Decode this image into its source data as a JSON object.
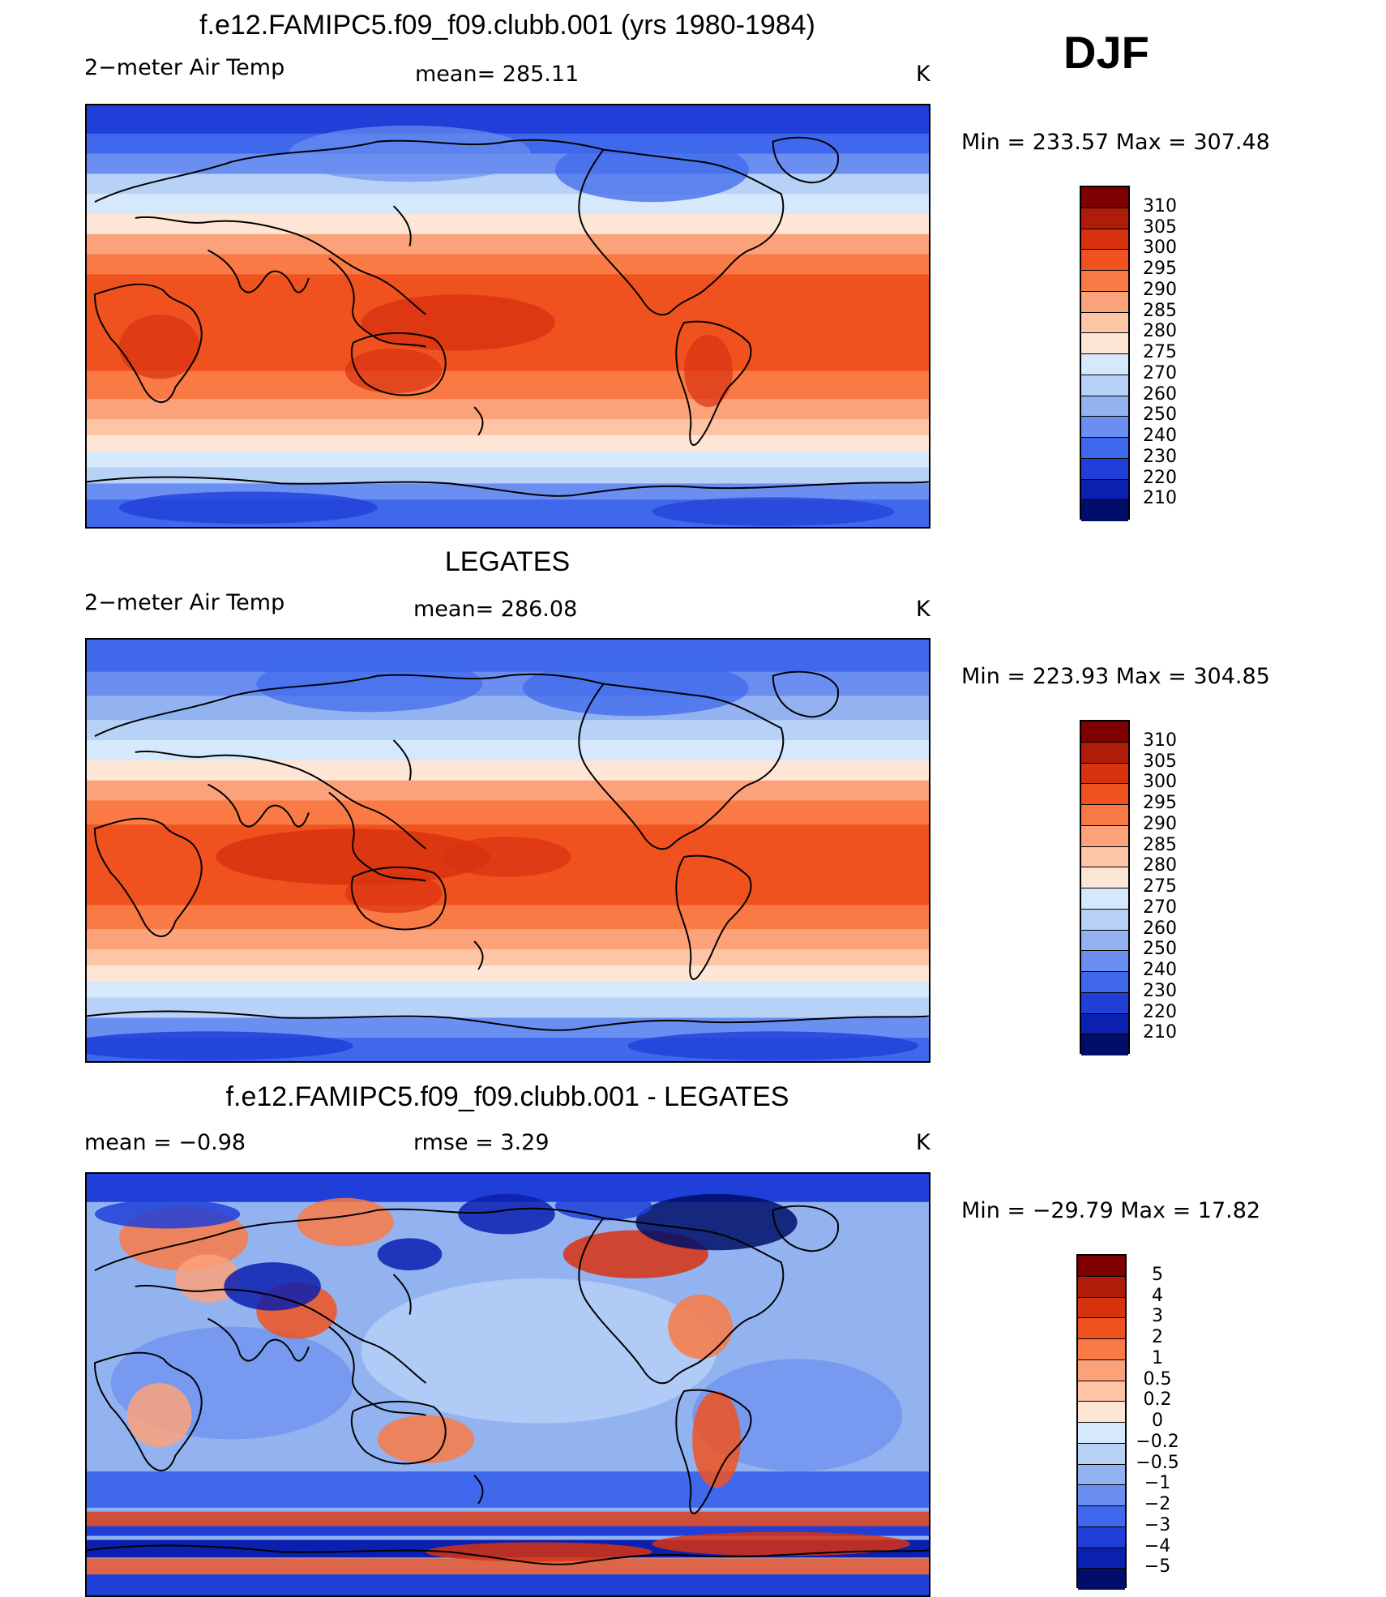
{
  "season": "DJF",
  "panels": [
    {
      "title": "f.e12.FAMIPC5.f09_f09.clubb.001 (yrs 1980-1984)",
      "left_label": "2−meter Air Temp",
      "center_label": "mean= 285.11",
      "units": "K",
      "minmax": "Min  =  233.57  Max  =  307.48",
      "colorbar": {
        "labels": [
          "310",
          "305",
          "300",
          "295",
          "290",
          "285",
          "280",
          "275",
          "270",
          "260",
          "250",
          "240",
          "230",
          "220",
          "210"
        ],
        "colors": [
          "#7f0000",
          "#b01c0a",
          "#d8320f",
          "#f0521f",
          "#fa7a45",
          "#fca27a",
          "#fdc5a6",
          "#fde6d6",
          "#d6e8fb",
          "#b7d1f7",
          "#93b3f0",
          "#6b8ff0",
          "#3f68ec",
          "#1f3fd8",
          "#0c20b0",
          "#000e6a"
        ]
      },
      "map": "model"
    },
    {
      "title": "LEGATES",
      "left_label": "2−meter Air Temp",
      "center_label": "mean= 286.08",
      "units": "K",
      "minmax": "Min  =  223.93  Max  =  304.85",
      "colorbar": {
        "labels": [
          "310",
          "305",
          "300",
          "295",
          "290",
          "285",
          "280",
          "275",
          "270",
          "260",
          "250",
          "240",
          "230",
          "220",
          "210"
        ],
        "colors": [
          "#7f0000",
          "#b01c0a",
          "#d8320f",
          "#f0521f",
          "#fa7a45",
          "#fca27a",
          "#fdc5a6",
          "#fde6d6",
          "#d6e8fb",
          "#b7d1f7",
          "#93b3f0",
          "#6b8ff0",
          "#3f68ec",
          "#1f3fd8",
          "#0c20b0",
          "#000e6a"
        ]
      },
      "map": "obs"
    },
    {
      "title": "f.e12.FAMIPC5.f09_f09.clubb.001 - LEGATES",
      "left_label": "mean =    −0.98",
      "center_label": "rmse =     3.29",
      "units": "K",
      "minmax": "Min  =  −29.79  Max  =   17.82",
      "colorbar": {
        "labels": [
          "5",
          "4",
          "3",
          "2",
          "1",
          "0.5",
          "0.2",
          "0",
          "−0.2",
          "−0.5",
          "−1",
          "−2",
          "−3",
          "−4",
          "−5"
        ],
        "colors": [
          "#7f0000",
          "#b01c0a",
          "#d8320f",
          "#f0521f",
          "#fa7a45",
          "#fca27a",
          "#fdc5a6",
          "#fde6d6",
          "#d6e8fb",
          "#b7d1f7",
          "#93b3f0",
          "#6b8ff0",
          "#3f68ec",
          "#1f3fd8",
          "#0c20b0",
          "#000e6a"
        ]
      },
      "map": "diff"
    }
  ]
}
